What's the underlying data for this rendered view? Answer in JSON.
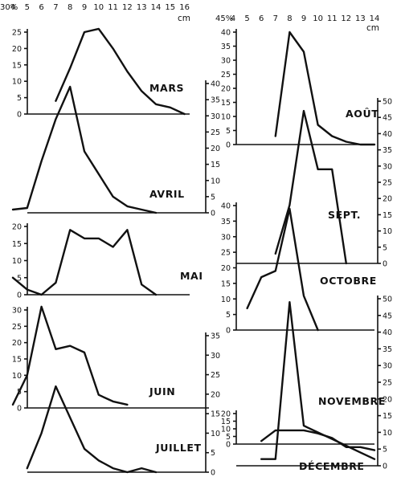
{
  "chart_data": [
    {
      "type": "line",
      "title": "MARS",
      "x_unit": "cm",
      "y_unit": "%",
      "x": [
        7,
        8,
        9,
        10,
        11,
        12,
        13,
        14,
        15,
        16
      ],
      "values": [
        4,
        14,
        25,
        26,
        20,
        13,
        7,
        3,
        2,
        0
      ]
    },
    {
      "type": "line",
      "title": "AVRIL",
      "x_unit": "cm",
      "y_unit": "%",
      "x": [
        4,
        5,
        6,
        7,
        8,
        9,
        10,
        11,
        12,
        13,
        14
      ],
      "values": [
        1,
        1.5,
        16,
        29,
        39,
        19,
        12,
        5,
        2,
        1,
        0
      ]
    },
    {
      "type": "line",
      "title": "MAI",
      "x_unit": "cm",
      "y_unit": "%",
      "x": [
        4,
        5,
        6,
        7,
        8,
        9,
        10,
        11,
        12,
        13,
        14
      ],
      "values": [
        5,
        1.5,
        0,
        3.5,
        19,
        16.5,
        16.5,
        14,
        19,
        3,
        0
      ]
    },
    {
      "type": "line",
      "title": "JUIN",
      "x_unit": "cm",
      "y_unit": "%",
      "x": [
        4,
        5,
        6,
        7,
        8,
        9,
        10,
        11,
        12
      ],
      "values": [
        1,
        10,
        31,
        18,
        19,
        17,
        4,
        2,
        1
      ]
    },
    {
      "type": "line",
      "title": "JUILLET",
      "x_unit": "cm",
      "y_unit": "%",
      "x": [
        5,
        6,
        7,
        8,
        9,
        10,
        11,
        12,
        13,
        14
      ],
      "values": [
        1,
        10,
        22,
        14,
        6,
        3,
        1,
        0,
        1,
        0
      ]
    },
    {
      "type": "line",
      "title": "AOÛT",
      "x_unit": "cm",
      "y_unit": "%",
      "x": [
        7,
        8,
        9,
        10,
        11,
        12,
        13,
        14
      ],
      "values": [
        3,
        40,
        33,
        7,
        3,
        1,
        0,
        0
      ]
    },
    {
      "type": "line",
      "title": "SEPT.",
      "x_unit": "cm",
      "y_unit": "%",
      "x": [
        7,
        8,
        9,
        10,
        11,
        12
      ],
      "values": [
        3,
        18,
        47,
        29,
        29,
        0
      ]
    },
    {
      "type": "line",
      "title": "OCTOBRE",
      "x_unit": "cm",
      "y_unit": "%",
      "x": [
        5,
        6,
        7,
        8,
        9,
        10
      ],
      "values": [
        7,
        17,
        19,
        39,
        11,
        0
      ]
    },
    {
      "type": "line",
      "title": "NOVEMBRE",
      "x_unit": "cm",
      "y_unit": "%",
      "x": [
        6,
        7,
        8,
        9,
        10,
        11,
        12,
        13,
        14
      ],
      "values": [
        2,
        2,
        49,
        12,
        10,
        8,
        6,
        4,
        2
      ]
    },
    {
      "type": "line",
      "title": "DÉCEMBRE",
      "x_unit": "cm",
      "y_unit": "%",
      "x": [
        6,
        7,
        8,
        9,
        10,
        11,
        12,
        13,
        14
      ],
      "values": [
        2,
        9,
        9,
        9,
        7,
        4,
        -2,
        -2,
        -4
      ]
    }
  ],
  "top_axes": [
    {
      "percent_label": "30%",
      "unit_label": "cm",
      "ticks": [
        "4",
        "5",
        "6",
        "7",
        "8",
        "9",
        "10",
        "11",
        "12",
        "13",
        "14",
        "15",
        "16"
      ]
    },
    {
      "percent_label": "45%",
      "unit_label": "cm",
      "ticks": [
        "4",
        "5",
        "6",
        "7",
        "8",
        "9",
        "10",
        "11",
        "12",
        "13",
        "14"
      ]
    }
  ],
  "y_axes": [
    {
      "id": "mars",
      "ticks": [
        "25",
        "20",
        "15",
        "10",
        "5",
        "0"
      ]
    },
    {
      "id": "avril",
      "ticks": [
        "40",
        "35",
        "30",
        "25",
        "20",
        "15",
        "10",
        "5",
        "0"
      ]
    },
    {
      "id": "mai",
      "ticks": [
        "20",
        "15",
        "10",
        "5",
        "0"
      ]
    },
    {
      "id": "juin",
      "ticks": [
        "30",
        "25",
        "20",
        "15",
        "10",
        "5",
        "0"
      ]
    },
    {
      "id": "juillet",
      "ticks": [
        "35",
        "30",
        "25",
        "20",
        "15",
        "10",
        "5",
        "0"
      ]
    },
    {
      "id": "aout",
      "ticks": [
        "40",
        "35",
        "30",
        "25",
        "20",
        "15",
        "10",
        "5",
        "0"
      ]
    },
    {
      "id": "sept",
      "ticks": [
        "50",
        "45",
        "40",
        "35",
        "30",
        "25",
        "20",
        "15",
        "10",
        "5",
        "0"
      ]
    },
    {
      "id": "octobre",
      "ticks": [
        "40",
        "35",
        "30",
        "25",
        "20",
        "15",
        "10",
        "5",
        "0"
      ]
    },
    {
      "id": "novembre",
      "ticks": [
        "50",
        "45",
        "40",
        "35",
        "30",
        "25",
        "20",
        "15",
        "10",
        "5",
        "0"
      ]
    },
    {
      "id": "decembre",
      "ticks": [
        "20",
        "15",
        "10",
        "5",
        "0"
      ]
    }
  ]
}
